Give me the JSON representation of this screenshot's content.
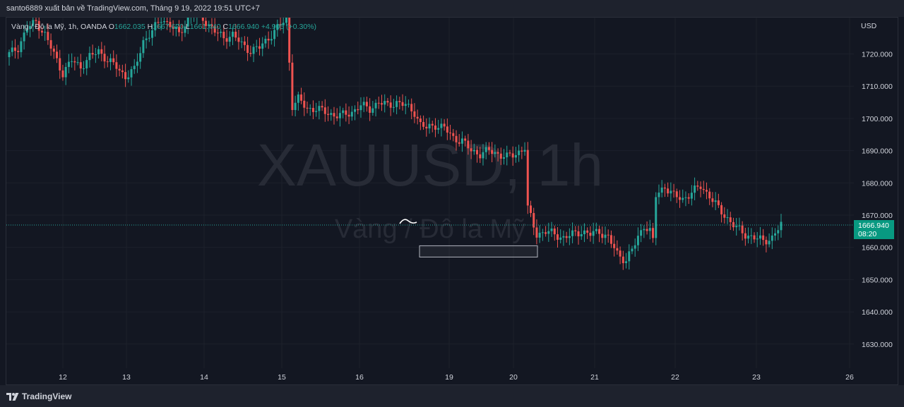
{
  "header": {
    "published_by": "santo6889 xuất bản về TradingView.com, Tháng 9 19, 2022 19:51 UTC+7"
  },
  "legend": {
    "symbol_desc": "Vàng / Đô la Mỹ, 1h, OANDA",
    "o_label": "O",
    "o_value": "1662.035",
    "h_label": "H",
    "h_value": "1667.670",
    "l_label": "L",
    "l_value": "1661.440",
    "c_label": "C",
    "c_value": "1666.940",
    "change": "+4.905 (+0.30%)"
  },
  "watermark": {
    "symbol": "XAUUSD, 1h",
    "description": "Vàng / Đô la Mỹ"
  },
  "price_label": {
    "value": "1666.940",
    "countdown": "08:20"
  },
  "footer": {
    "brand": "TradingView"
  },
  "colors": {
    "up": "#26a69a",
    "down": "#ef5350",
    "background": "#131722",
    "grid": "#1c202b",
    "price_line": "#26a69a"
  },
  "chart_data": {
    "type": "candlestick",
    "symbol": "XAUUSD",
    "timeframe": "1h",
    "currency_label": "USD",
    "y_ticks": [
      1720,
      1710,
      1700,
      1690,
      1680,
      1670,
      1660,
      1650,
      1640,
      1630
    ],
    "y_tick_labels": [
      "1720.000",
      "1710.000",
      "1700.000",
      "1690.000",
      "1680.000",
      "1670.000",
      "1660.000",
      "1650.000",
      "1640.000",
      "1630.000"
    ],
    "ylim": [
      1622,
      1734
    ],
    "x_ticks": [
      "12",
      "13",
      "14",
      "15",
      "16",
      "19",
      "20",
      "21",
      "22",
      "23",
      "26"
    ],
    "last_price": 1666.94,
    "annotation_box": {
      "from": "19",
      "to": "20",
      "low": 1657,
      "high": 1660.5
    },
    "path_points": [
      [
        0,
        1720
      ],
      [
        3,
        1722
      ],
      [
        6,
        1728
      ],
      [
        9,
        1730
      ],
      [
        12,
        1726
      ],
      [
        15,
        1720
      ],
      [
        18,
        1714
      ],
      [
        21,
        1718
      ],
      [
        24,
        1716
      ],
      [
        27,
        1719
      ],
      [
        30,
        1721
      ],
      [
        33,
        1718
      ],
      [
        36,
        1716
      ],
      [
        39,
        1713
      ],
      [
        42,
        1715
      ],
      [
        45,
        1724
      ],
      [
        48,
        1727
      ],
      [
        51,
        1731
      ],
      [
        54,
        1729
      ],
      [
        57,
        1726
      ],
      [
        60,
        1731
      ],
      [
        63,
        1733
      ],
      [
        66,
        1730
      ],
      [
        69,
        1727
      ],
      [
        72,
        1725
      ],
      [
        75,
        1726
      ],
      [
        78,
        1723
      ],
      [
        81,
        1721
      ],
      [
        84,
        1722
      ],
      [
        87,
        1725
      ],
      [
        90,
        1728
      ],
      [
        93,
        1731
      ],
      [
        95,
        1704
      ],
      [
        97,
        1706
      ],
      [
        100,
        1703
      ],
      [
        103,
        1703
      ],
      [
        106,
        1702
      ],
      [
        109,
        1701
      ],
      [
        112,
        1701
      ],
      [
        115,
        1702
      ],
      [
        118,
        1704
      ],
      [
        121,
        1703
      ],
      [
        124,
        1705
      ],
      [
        127,
        1704
      ],
      [
        130,
        1705
      ],
      [
        133,
        1704
      ],
      [
        136,
        1702
      ],
      [
        138,
        1698
      ],
      [
        140,
        1697
      ],
      [
        143,
        1698
      ],
      [
        146,
        1697
      ],
      [
        149,
        1694
      ],
      [
        152,
        1693
      ],
      [
        155,
        1690
      ],
      [
        158,
        1689
      ],
      [
        161,
        1690
      ],
      [
        164,
        1689
      ],
      [
        167,
        1688
      ],
      [
        170,
        1689
      ],
      [
        173,
        1691
      ],
      [
        174,
        1672
      ],
      [
        177,
        1664
      ],
      [
        180,
        1665
      ],
      [
        183,
        1664
      ],
      [
        186,
        1663
      ],
      [
        189,
        1664
      ],
      [
        192,
        1665
      ],
      [
        195,
        1664
      ],
      [
        198,
        1665
      ],
      [
        201,
        1663
      ],
      [
        204,
        1658
      ],
      [
        207,
        1656
      ],
      [
        210,
        1661
      ],
      [
        213,
        1667
      ],
      [
        215,
        1665
      ],
      [
        216,
        1662
      ],
      [
        217,
        1676
      ],
      [
        220,
        1679
      ],
      [
        223,
        1676
      ],
      [
        226,
        1675
      ],
      [
        229,
        1677
      ],
      [
        232,
        1679
      ],
      [
        235,
        1676
      ],
      [
        238,
        1672
      ],
      [
        241,
        1669
      ],
      [
        244,
        1666
      ],
      [
        247,
        1664
      ],
      [
        250,
        1663
      ],
      [
        253,
        1662
      ],
      [
        256,
        1663
      ],
      [
        259,
        1667
      ]
    ]
  }
}
